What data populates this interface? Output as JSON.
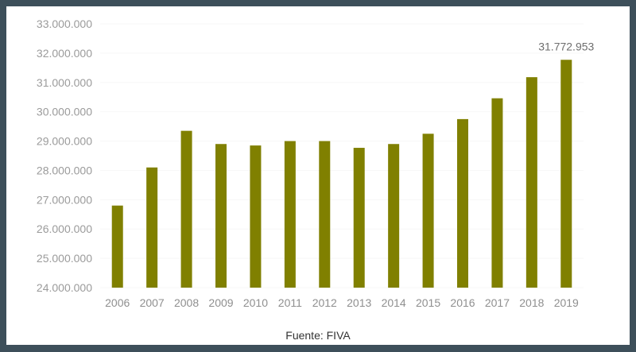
{
  "source": "Fuente: FIVA",
  "colors": {
    "bar": "#808000",
    "window_border": "#3d4f5a"
  },
  "chart_data": {
    "type": "bar",
    "categories": [
      "2006",
      "2007",
      "2008",
      "2009",
      "2010",
      "2011",
      "2012",
      "2013",
      "2014",
      "2015",
      "2016",
      "2017",
      "2018",
      "2019"
    ],
    "values": [
      26800000,
      28100000,
      29350000,
      28900000,
      28850000,
      29000000,
      29000000,
      28770000,
      28900000,
      29250000,
      29750000,
      30460000,
      31180000,
      31772953
    ],
    "ylim": [
      24000000,
      33000000
    ],
    "yticks": [
      24000000,
      25000000,
      26000000,
      27000000,
      28000000,
      29000000,
      30000000,
      31000000,
      32000000,
      33000000
    ],
    "ytick_labels": [
      "24.000.000",
      "25.000.000",
      "26.000.000",
      "27.000.000",
      "28.000.000",
      "29.000.000",
      "30.000.000",
      "31.000.000",
      "32.000.000",
      "33.000.000"
    ],
    "data_labels": [
      {
        "category": "2019",
        "text": "31.772.953"
      }
    ],
    "grid": true,
    "legend": "none",
    "title": "",
    "xlabel": "",
    "ylabel": ""
  }
}
